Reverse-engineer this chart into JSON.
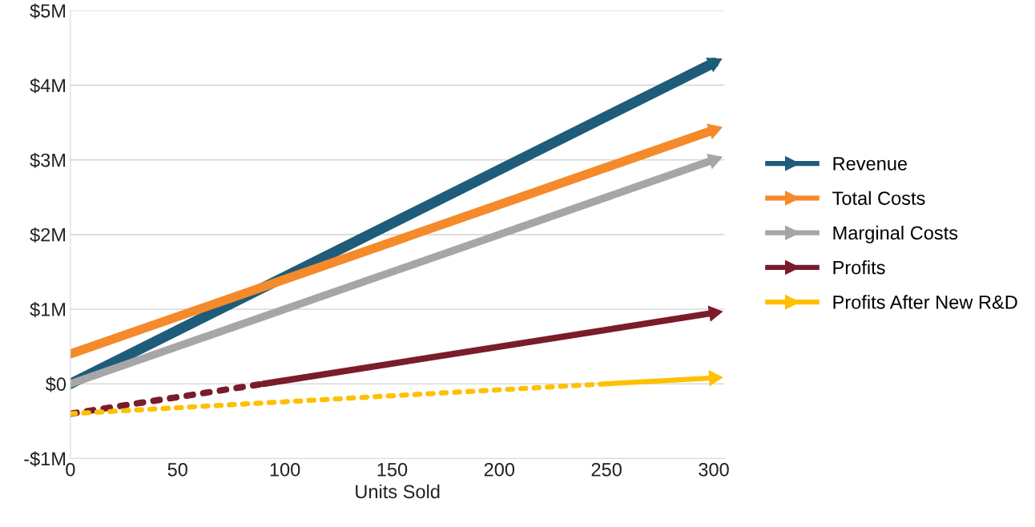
{
  "chart_data": {
    "type": "line",
    "xlabel": "Units Sold",
    "xlim": [
      0,
      305
    ],
    "xticks": [
      0,
      50,
      100,
      150,
      200,
      250,
      300
    ],
    "ylim": [
      -1,
      5
    ],
    "yticks": [
      {
        "value": -1,
        "label": "-$1M"
      },
      {
        "value": 0,
        "label": "$0"
      },
      {
        "value": 1,
        "label": "$1M"
      },
      {
        "value": 2,
        "label": "$2M"
      },
      {
        "value": 3,
        "label": "$3M"
      },
      {
        "value": 4,
        "label": "$4M"
      },
      {
        "value": 5,
        "label": "$5M"
      }
    ],
    "grid": "y",
    "legend": "right",
    "series": [
      {
        "name": "Revenue",
        "color": "#1f5c7a",
        "x": [
          0,
          300
        ],
        "values": [
          0,
          4.3
        ],
        "line_style": [
          "solid"
        ]
      },
      {
        "name": "Total Costs",
        "color": "#f58a2b",
        "x": [
          0,
          300
        ],
        "values": [
          0.4,
          3.4
        ],
        "line_style": [
          "solid"
        ]
      },
      {
        "name": "Marginal Costs",
        "color": "#a6a6a6",
        "x": [
          0,
          300
        ],
        "values": [
          0,
          3.0
        ],
        "line_style": [
          "solid"
        ]
      },
      {
        "name": "Profits",
        "color": "#7b1c2b",
        "x": [
          0,
          90,
          300
        ],
        "values": [
          -0.4,
          0,
          0.95
        ],
        "line_style": [
          "dotted",
          "solid"
        ]
      },
      {
        "name": "Profits After New R&D",
        "color": "#ffc000",
        "x": [
          0,
          250,
          300
        ],
        "values": [
          -0.4,
          0,
          0.08
        ],
        "line_style": [
          "dotted",
          "solid"
        ]
      }
    ]
  }
}
